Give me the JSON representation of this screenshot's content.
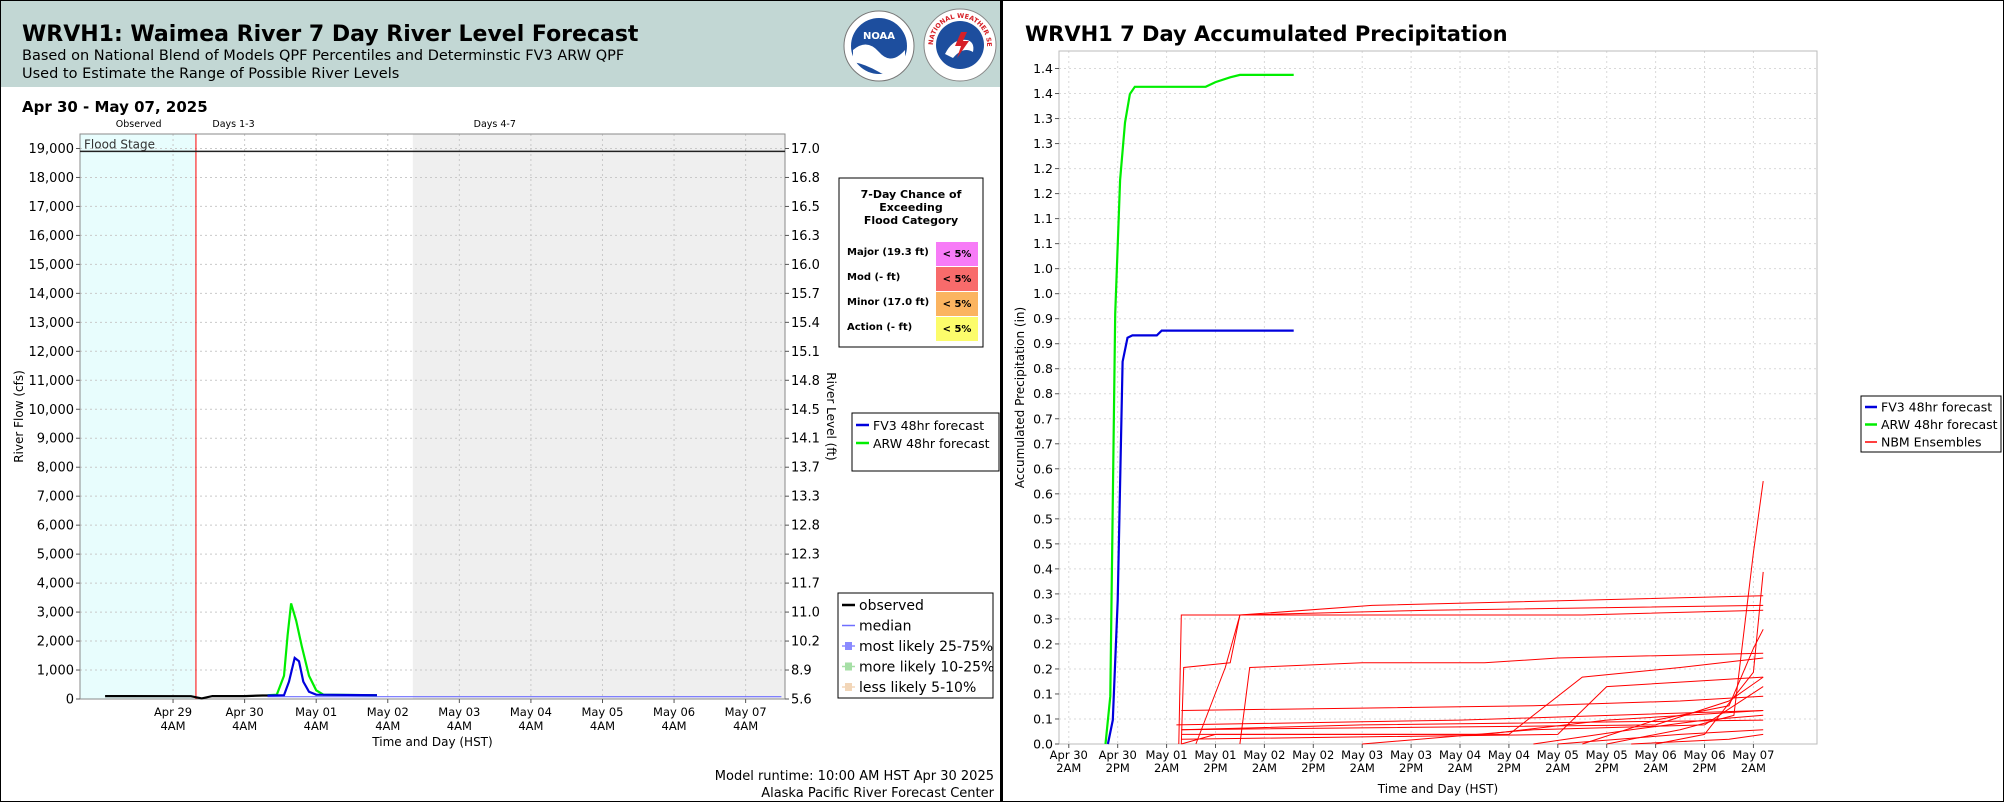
{
  "left": {
    "title": "WRVH1: Waimea River 7 Day River Level Forecast",
    "subtitle_line1": "Based on National Blend of Models QPF Percentiles and Determinstic FV3 ARW QPF",
    "subtitle_line2": "Used to Estimate the Range of Possible River Levels",
    "date_range": "Apr 30 - May 07, 2025",
    "footer_runtime": "Model runtime: 10:00 AM HST Apr 30 2025",
    "footer_center": "Alaska Pacific River Forecast Center",
    "logos": {
      "noaa": "NOAA",
      "noaa_sub": "U.S. DEPARTMENT OF COMMERCE",
      "nws": "NATIONAL WEATHER SERVICE"
    },
    "colors": {
      "observed_shade": "#e8fdfd",
      "days47_shade": "#efefef",
      "forecast_line": "#ff0000",
      "fv3": "#0000dd",
      "arw": "#00ee00"
    },
    "chart_data": {
      "type": "line",
      "period_labels": [
        "Observed",
        "Days 1-3",
        "Days 4-7"
      ],
      "flood_stage_label": "Flood Stage",
      "flood_stage_flow": 18900,
      "x_ticks": [
        [
          "Apr 29",
          "4AM"
        ],
        [
          "Apr 30",
          "4AM"
        ],
        [
          "May 01",
          "4AM"
        ],
        [
          "May 02",
          "4AM"
        ],
        [
          "May 03",
          "4AM"
        ],
        [
          "May 04",
          "4AM"
        ],
        [
          "May 05",
          "4AM"
        ],
        [
          "May 06",
          "4AM"
        ],
        [
          "May 07",
          "4AM"
        ]
      ],
      "xlabel": "Time and Day (HST)",
      "ylabel_left": "River Flow (cfs)",
      "ylabel_right": "River Level (ft)",
      "ylim": [
        0,
        19500
      ],
      "y_ticks_left": [
        "0",
        "1,000",
        "2,000",
        "3,000",
        "4,000",
        "5,000",
        "6,000",
        "7,000",
        "8,000",
        "9,000",
        "10,000",
        "11,000",
        "12,000",
        "13,000",
        "14,000",
        "15,000",
        "16,000",
        "17,000",
        "18,000",
        "19,000"
      ],
      "y_ticks_right": [
        "5.6",
        "8.9",
        "10.2",
        "11.0",
        "11.7",
        "12.3",
        "12.8",
        "13.3",
        "13.7",
        "14.1",
        "14.5",
        "14.8",
        "15.1",
        "15.4",
        "15.7",
        "16.0",
        "16.3",
        "16.5",
        "16.8",
        "17.0"
      ],
      "legend_models": [
        "FV3 48hr forecast",
        "ARW 48hr forecast"
      ],
      "legend_percentiles": [
        "observed",
        "median",
        "most likely 25-75%",
        "more likely 10-25%",
        "less likely 5-10%"
      ],
      "series": [
        {
          "name": "observed",
          "color": "#000000",
          "points": [
            [
              -0.95,
              100
            ],
            [
              0.25,
              95
            ],
            [
              0.4,
              20
            ],
            [
              0.55,
              100
            ],
            [
              1.0,
              100
            ],
            [
              1.25,
              120
            ],
            [
              1.32,
              120
            ]
          ]
        },
        {
          "name": "median",
          "color": "#6f6fff",
          "points": [
            [
              1.32,
              80
            ],
            [
              2.85,
              80
            ],
            [
              8.5,
              80
            ]
          ]
        },
        {
          "name": "ARW 48hr forecast",
          "color": "#00ee00",
          "points": [
            [
              1.32,
              130
            ],
            [
              1.45,
              150
            ],
            [
              1.55,
              800
            ],
            [
              1.6,
              2200
            ],
            [
              1.65,
              3300
            ],
            [
              1.72,
              2700
            ],
            [
              1.8,
              1800
            ],
            [
              1.9,
              800
            ],
            [
              2.0,
              300
            ],
            [
              2.1,
              150
            ],
            [
              2.85,
              130
            ]
          ]
        },
        {
          "name": "FV3 48hr forecast",
          "color": "#0000dd",
          "points": [
            [
              1.32,
              120
            ],
            [
              1.55,
              130
            ],
            [
              1.62,
              600
            ],
            [
              1.7,
              1420
            ],
            [
              1.76,
              1300
            ],
            [
              1.82,
              600
            ],
            [
              1.9,
              250
            ],
            [
              2.0,
              150
            ],
            [
              2.85,
              130
            ]
          ]
        }
      ],
      "flood_table": {
        "title": [
          "7-Day Chance of",
          "Exceeding",
          "Flood Category"
        ],
        "rows": [
          {
            "label": "Major (19.3 ft)",
            "value": "< 5%",
            "color": "#f77bf7"
          },
          {
            "label": "Mod (- ft)",
            "value": "< 5%",
            "color": "#f86b6b"
          },
          {
            "label": "Minor (17.0 ft)",
            "value": "< 5%",
            "color": "#fbb460"
          },
          {
            "label": "Action (- ft)",
            "value": "< 5%",
            "color": "#fcfc6b"
          }
        ]
      }
    }
  },
  "right": {
    "title": "WRVH1 7 Day Accumulated Precipitation",
    "colors": {
      "fv3": "#0000dd",
      "arw": "#00ee00",
      "nbm": "#ff0000"
    },
    "chart_data": {
      "type": "line",
      "xlabel": "Time and Day (HST)",
      "ylabel": "Accumulated Precipitation (in)",
      "ylim": [
        0,
        1.45
      ],
      "y_ticks": [
        "0.0",
        "0.1",
        "0.1",
        "0.2",
        "0.2",
        "0.3",
        "0.3",
        "0.4",
        "0.5",
        "0.5",
        "0.6",
        "0.6",
        "0.7",
        "0.7",
        "0.8",
        "0.8",
        "0.9",
        "0.9",
        "1.0",
        "1.0",
        "1.1",
        "1.1",
        "1.2",
        "1.2",
        "1.3",
        "1.3",
        "1.4",
        "1.4"
      ],
      "x_ticks": [
        [
          "Apr 30",
          "2AM"
        ],
        [
          "Apr 30",
          "2PM"
        ],
        [
          "May 01",
          "2AM"
        ],
        [
          "May 01",
          "2PM"
        ],
        [
          "May 02",
          "2AM"
        ],
        [
          "May 02",
          "2PM"
        ],
        [
          "May 03",
          "2AM"
        ],
        [
          "May 03",
          "2PM"
        ],
        [
          "May 04",
          "2AM"
        ],
        [
          "May 04",
          "2PM"
        ],
        [
          "May 05",
          "2AM"
        ],
        [
          "May 05",
          "2PM"
        ],
        [
          "May 06",
          "2AM"
        ],
        [
          "May 06",
          "2PM"
        ],
        [
          "May 07",
          "2AM"
        ]
      ],
      "legend": [
        "FV3 48hr forecast",
        "ARW 48hr forecast",
        "NBM Ensembles"
      ],
      "series": [
        {
          "name": "ARW 48hr forecast",
          "color": "#00ee00",
          "points": [
            [
              0.75,
              0
            ],
            [
              0.85,
              0.1
            ],
            [
              0.95,
              0.9
            ],
            [
              1.05,
              1.18
            ],
            [
              1.15,
              1.3
            ],
            [
              1.25,
              1.36
            ],
            [
              1.35,
              1.375
            ],
            [
              2.8,
              1.375
            ],
            [
              3.0,
              1.385
            ],
            [
              3.3,
              1.395
            ],
            [
              3.5,
              1.4
            ],
            [
              4.6,
              1.4
            ]
          ]
        },
        {
          "name": "FV3 48hr forecast",
          "color": "#0000dd",
          "points": [
            [
              0.8,
              0
            ],
            [
              0.9,
              0.05
            ],
            [
              1.0,
              0.3
            ],
            [
              1.1,
              0.8
            ],
            [
              1.2,
              0.85
            ],
            [
              1.3,
              0.855
            ],
            [
              1.8,
              0.855
            ],
            [
              1.9,
              0.865
            ],
            [
              4.6,
              0.865
            ]
          ]
        }
      ],
      "nbm_members": [
        [
          [
            2.25,
            0.0
          ],
          [
            2.3,
            0.27
          ],
          [
            10.5,
            0.27
          ],
          [
            14.2,
            0.28
          ]
        ],
        [
          [
            2.3,
            0.0
          ],
          [
            2.35,
            0.16
          ],
          [
            3.3,
            0.17
          ],
          [
            3.5,
            0.27
          ],
          [
            7.4,
            0.28
          ],
          [
            14.2,
            0.29
          ]
        ],
        [
          [
            2.6,
            0.0
          ],
          [
            3.2,
            0.16
          ],
          [
            3.5,
            0.27
          ],
          [
            6.2,
            0.29
          ],
          [
            14.2,
            0.31
          ]
        ],
        [
          [
            3.5,
            0.0
          ],
          [
            3.7,
            0.16
          ],
          [
            6.0,
            0.17
          ],
          [
            8.5,
            0.17
          ],
          [
            10.0,
            0.18
          ],
          [
            14.2,
            0.19
          ]
        ],
        [
          [
            2.3,
            0.03
          ],
          [
            6.0,
            0.04
          ],
          [
            14.2,
            0.05
          ]
        ],
        [
          [
            2.2,
            0.04
          ],
          [
            8.0,
            0.05
          ],
          [
            14.2,
            0.07
          ]
        ],
        [
          [
            2.3,
            0.02
          ],
          [
            9.0,
            0.02
          ],
          [
            10.5,
            0.14
          ],
          [
            12.5,
            0.16
          ],
          [
            14.2,
            0.18
          ]
        ],
        [
          [
            2.3,
            0.01
          ],
          [
            10.0,
            0.02
          ],
          [
            11.0,
            0.12
          ],
          [
            14.2,
            0.14
          ]
        ],
        [
          [
            10.5,
            0.0
          ],
          [
            12.0,
            0.05
          ],
          [
            13.5,
            0.08
          ],
          [
            14.0,
            0.2
          ],
          [
            14.2,
            0.24
          ]
        ],
        [
          [
            11.0,
            0.0
          ],
          [
            12.5,
            0.03
          ],
          [
            13.6,
            0.06
          ],
          [
            14.0,
            0.4
          ],
          [
            14.2,
            0.55
          ]
        ],
        [
          [
            12.0,
            0.0
          ],
          [
            13.0,
            0.02
          ],
          [
            14.0,
            0.15
          ],
          [
            14.2,
            0.36
          ]
        ],
        [
          [
            2.3,
            0.07
          ],
          [
            9.5,
            0.08
          ],
          [
            12.5,
            0.09
          ],
          [
            14.2,
            0.1
          ]
        ],
        [
          [
            2.3,
            0.03
          ],
          [
            12.0,
            0.04
          ],
          [
            13.5,
            0.09
          ],
          [
            14.2,
            0.14
          ]
        ],
        [
          [
            9.5,
            0.0
          ],
          [
            11.5,
            0.03
          ],
          [
            13.0,
            0.05
          ],
          [
            14.2,
            0.06
          ]
        ],
        [
          [
            10.0,
            0.0
          ],
          [
            12.5,
            0.02
          ],
          [
            14.2,
            0.03
          ]
        ],
        [
          [
            11.5,
            0.0
          ],
          [
            13.5,
            0.01
          ],
          [
            14.2,
            0.02
          ]
        ],
        [
          [
            2.3,
            0.0
          ],
          [
            3.0,
            0.02
          ],
          [
            8.5,
            0.02
          ],
          [
            11.0,
            0.05
          ],
          [
            14.2,
            0.07
          ]
        ],
        [
          [
            6.0,
            0.0
          ],
          [
            9.5,
            0.03
          ],
          [
            13.0,
            0.04
          ],
          [
            14.2,
            0.12
          ]
        ]
      ]
    }
  }
}
